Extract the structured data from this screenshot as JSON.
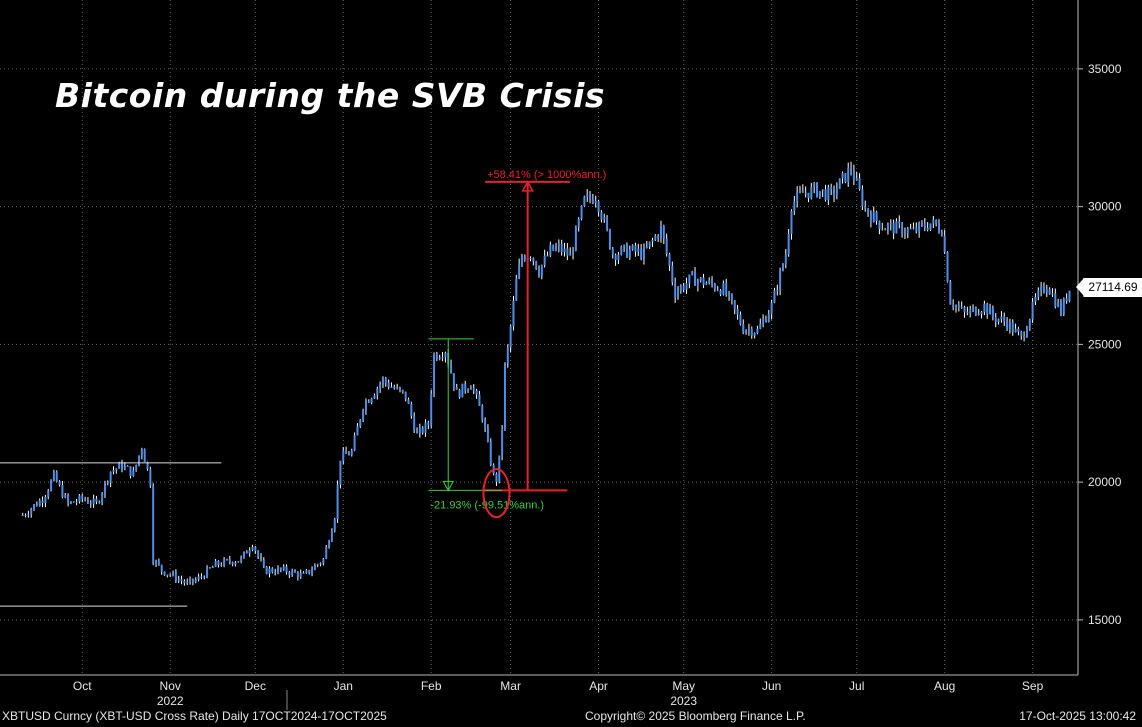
{
  "title": "Bitcoin during the SVB Crisis",
  "footer": {
    "left": "XBTUSD Curncy (XBT-USD Cross Rate) Daily 17OCT2024-17OCT2025",
    "center": "Copyright© 2025 Bloomberg Finance L.P.",
    "right": "17-Oct-2025 13:00:42"
  },
  "last_price_label": "27114.69",
  "colors": {
    "background": "#000000",
    "candles": "#4d8fe8",
    "wick": "#ffffff",
    "up_annotation": "#e8202a",
    "down_annotation": "#3ccf3c",
    "grid": "#666666"
  },
  "chart_data": {
    "type": "line",
    "ylim": [
      13000,
      37500
    ],
    "yticks": [
      15000,
      20000,
      25000,
      30000,
      35000
    ],
    "grid": true,
    "x_month_labels": [
      {
        "label": "Oct",
        "date": "2022-10-15"
      },
      {
        "label": "Nov",
        "date": "2022-11-15"
      },
      {
        "label": "Dec",
        "date": "2022-12-15"
      },
      {
        "label": "Jan",
        "date": "2023-01-15"
      },
      {
        "label": "Feb",
        "date": "2023-02-15"
      },
      {
        "label": "Mar",
        "date": "2023-03-15"
      },
      {
        "label": "Apr",
        "date": "2023-04-15"
      },
      {
        "label": "May",
        "date": "2023-05-15"
      },
      {
        "label": "Jun",
        "date": "2023-06-15"
      },
      {
        "label": "Jul",
        "date": "2023-07-15"
      },
      {
        "label": "Aug",
        "date": "2023-08-15"
      },
      {
        "label": "Sep",
        "date": "2023-09-15"
      }
    ],
    "year_labels": [
      {
        "label": "2022",
        "date": "2022-11-15"
      },
      {
        "label": "2023",
        "date": "2023-05-15"
      }
    ],
    "series": [
      {
        "x": [
          "2022-09-24",
          "2022-10-01",
          "2022-10-05",
          "2022-10-10",
          "2022-10-15",
          "2022-10-20",
          "2022-10-25",
          "2022-10-29",
          "2022-11-02",
          "2022-11-05",
          "2022-11-08",
          "2022-11-09",
          "2022-11-12",
          "2022-11-16",
          "2022-11-21",
          "2022-11-25",
          "2022-12-01",
          "2022-12-05",
          "2022-12-10",
          "2022-12-14",
          "2022-12-18",
          "2022-12-25",
          "2023-01-01",
          "2023-01-08",
          "2023-01-12",
          "2023-01-14",
          "2023-01-18",
          "2023-01-22",
          "2023-01-29",
          "2023-02-02",
          "2023-02-06",
          "2023-02-10",
          "2023-02-14",
          "2023-02-16",
          "2023-02-20",
          "2023-02-24",
          "2023-03-01",
          "2023-03-05",
          "2023-03-09",
          "2023-03-10",
          "2023-03-11",
          "2023-03-12",
          "2023-03-13",
          "2023-03-14",
          "2023-03-17",
          "2023-03-19",
          "2023-03-22",
          "2023-03-25",
          "2023-03-29",
          "2023-04-01",
          "2023-04-05",
          "2023-04-10",
          "2023-04-14",
          "2023-04-17",
          "2023-04-20",
          "2023-04-26",
          "2023-05-01",
          "2023-05-07",
          "2023-05-12",
          "2023-05-18",
          "2023-05-24",
          "2023-05-29",
          "2023-06-05",
          "2023-06-10",
          "2023-06-15",
          "2023-06-20",
          "2023-06-22",
          "2023-06-26",
          "2023-07-01",
          "2023-07-06",
          "2023-07-13",
          "2023-07-18",
          "2023-07-24",
          "2023-07-30",
          "2023-08-04",
          "2023-08-10",
          "2023-08-14",
          "2023-08-17",
          "2023-08-22",
          "2023-08-29",
          "2023-09-01",
          "2023-09-06",
          "2023-09-11",
          "2023-09-16",
          "2023-09-20",
          "2023-09-25",
          "2023-09-28"
        ],
        "values": [
          18800,
          19400,
          20200,
          19200,
          19400,
          19200,
          20400,
          20600,
          20300,
          21300,
          20000,
          17200,
          16800,
          16600,
          16300,
          16500,
          17000,
          17100,
          17200,
          17800,
          16800,
          16800,
          16600,
          17200,
          18800,
          20900,
          21100,
          22800,
          23700,
          23400,
          23100,
          21700,
          22100,
          24600,
          24800,
          23200,
          23600,
          22400,
          20200,
          20100,
          20800,
          22000,
          24200,
          24800,
          27300,
          28200,
          28300,
          27700,
          28400,
          28500,
          28200,
          30200,
          30400,
          29400,
          28300,
          28400,
          28300,
          29200,
          26900,
          27400,
          27200,
          27000,
          25600,
          25500,
          26400,
          28300,
          30100,
          30500,
          30600,
          30400,
          31400,
          29900,
          29300,
          29200,
          29100,
          29400,
          29200,
          26600,
          26100,
          26400,
          26000,
          25800,
          25200,
          26600,
          27200,
          26200,
          27000
        ]
      }
    ],
    "annotations": [
      {
        "type": "range",
        "label": "+58.41% (> 1000%ann.)",
        "from_date": "2023-03-10",
        "to_date": "2023-04-10",
        "from_value": 19700,
        "to_value": 30900
      },
      {
        "type": "range",
        "label": "-21.93% (-99.51%ann.)",
        "from_date": "2023-02-14",
        "to_date": "2023-03-10",
        "from_value": 25200,
        "to_value": 19700
      }
    ]
  }
}
